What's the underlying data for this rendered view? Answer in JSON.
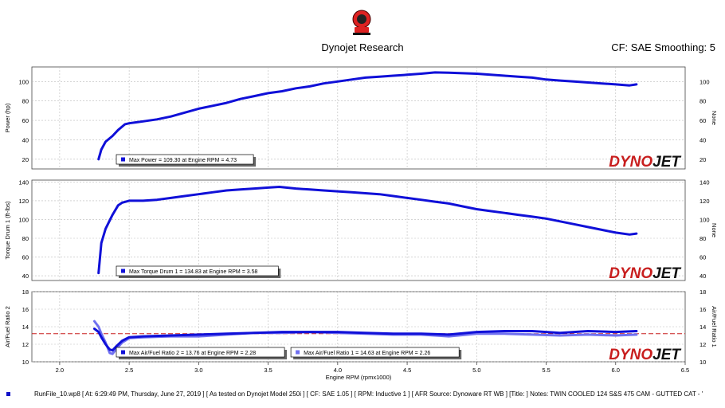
{
  "header": {
    "title": "Dynojet Research",
    "right_text": "CF: SAE Smoothing: 5"
  },
  "watermark": {
    "part1": "DYNO",
    "part2": "JET",
    "color": "#c81e1e"
  },
  "footer": {
    "text": "RunFile_10.wp8 [ At: 6:29:49 PM, Thursday, June 27, 2019 ] [ As tested on Dynojet Model 250i ] [ CF: SAE 1.05 ] [ RPM: Inductive 1 ] [ AFR Source: Dynoware RT WB ] [Title: ]  Notes:  TWIN COOLED 124 S&S 475 CAM - GUTTED CAT - '"
  },
  "chart_data": [
    {
      "type": "line",
      "xlabel": "Engine RPM (rpmx1000)",
      "ylabel": "Power (hp)",
      "ylabel_right": "None",
      "ylim": [
        10,
        115
      ],
      "yticks": [
        20,
        40,
        60,
        80,
        100
      ],
      "xlim": [
        1.8,
        6.5
      ],
      "series": [
        {
          "color": "#1010d8",
          "x": [
            2.28,
            2.3,
            2.33,
            2.38,
            2.42,
            2.47,
            2.5,
            2.55,
            2.6,
            2.7,
            2.8,
            2.9,
            3.0,
            3.1,
            3.2,
            3.3,
            3.4,
            3.5,
            3.6,
            3.7,
            3.8,
            3.9,
            4.0,
            4.1,
            4.2,
            4.3,
            4.4,
            4.5,
            4.6,
            4.7,
            4.8,
            4.9,
            5.0,
            5.1,
            5.2,
            5.3,
            5.4,
            5.5,
            5.6,
            5.7,
            5.8,
            5.9,
            6.0,
            6.1,
            6.15
          ],
          "values": [
            20,
            30,
            38,
            44,
            50,
            56,
            57,
            58,
            59,
            61,
            64,
            68,
            72,
            75,
            78,
            82,
            85,
            88,
            90,
            93,
            95,
            98,
            100,
            102,
            104,
            105,
            106,
            107,
            108,
            109.3,
            109,
            108.5,
            108,
            107,
            106,
            105,
            104,
            102,
            101,
            100,
            99,
            98,
            97,
            96,
            97
          ]
        }
      ],
      "legend": {
        "entries": [
          "Max Power = 109.30 at Engine RPM = 4.73"
        ]
      }
    },
    {
      "type": "line",
      "xlabel": "Engine RPM (rpmx1000)",
      "ylabel": "Torque Drum 1 (ft-lbs)",
      "ylabel_right": "None",
      "ylim": [
        35,
        142
      ],
      "yticks": [
        40,
        60,
        80,
        100,
        120,
        140
      ],
      "xlim": [
        1.8,
        6.5
      ],
      "series": [
        {
          "color": "#1010d8",
          "x": [
            2.28,
            2.3,
            2.33,
            2.38,
            2.42,
            2.45,
            2.5,
            2.55,
            2.6,
            2.7,
            2.8,
            2.9,
            3.0,
            3.1,
            3.2,
            3.3,
            3.4,
            3.5,
            3.58,
            3.7,
            3.8,
            3.9,
            4.0,
            4.1,
            4.2,
            4.3,
            4.4,
            4.5,
            4.6,
            4.7,
            4.8,
            4.9,
            5.0,
            5.1,
            5.2,
            5.3,
            5.4,
            5.5,
            5.6,
            5.7,
            5.8,
            5.9,
            6.0,
            6.1,
            6.15
          ],
          "values": [
            43,
            75,
            90,
            105,
            115,
            118,
            120,
            120,
            120,
            121,
            123,
            125,
            127,
            129,
            131,
            132,
            133,
            134,
            134.8,
            133,
            132,
            131,
            130,
            129,
            128,
            127,
            125,
            123,
            121,
            119,
            117,
            114,
            111,
            109,
            107,
            105,
            103,
            101,
            98,
            95,
            92,
            89,
            86,
            84,
            85
          ]
        }
      ],
      "legend": {
        "entries": [
          "Max Torque Drum 1 = 134.83 at Engine RPM = 3.58"
        ]
      }
    },
    {
      "type": "line",
      "xlabel": "Engine RPM (rpmx1000)",
      "ylabel": "Air/Fuel Ratio 2",
      "ylabel_right": "Air/Fuel Ratio 1",
      "ylim": [
        10,
        18
      ],
      "yticks": [
        10,
        12,
        14,
        16,
        18
      ],
      "xlim": [
        1.8,
        6.5
      ],
      "xticks": [
        2.0,
        2.5,
        3.0,
        3.5,
        4.0,
        4.5,
        5.0,
        5.5,
        6.0,
        6.5
      ],
      "reference_line": 13.2,
      "reference_color": "#c81e1e",
      "series": [
        {
          "name": "Air/Fuel Ratio 2",
          "color": "#1010d8",
          "x": [
            2.25,
            2.28,
            2.3,
            2.33,
            2.36,
            2.38,
            2.41,
            2.45,
            2.5,
            2.6,
            2.8,
            3.0,
            3.2,
            3.4,
            3.6,
            3.8,
            4.0,
            4.2,
            4.4,
            4.6,
            4.8,
            5.0,
            5.2,
            5.4,
            5.6,
            5.8,
            6.0,
            6.15
          ],
          "values": [
            13.76,
            13.4,
            12.8,
            12.0,
            11.4,
            11.3,
            11.8,
            12.4,
            12.8,
            12.9,
            13.0,
            13.1,
            13.2,
            13.3,
            13.4,
            13.4,
            13.4,
            13.3,
            13.2,
            13.2,
            13.1,
            13.4,
            13.5,
            13.5,
            13.3,
            13.5,
            13.4,
            13.5
          ]
        },
        {
          "name": "Air/Fuel Ratio 1",
          "color": "#7070f0",
          "x": [
            2.25,
            2.28,
            2.3,
            2.33,
            2.36,
            2.38,
            2.41,
            2.45,
            2.5,
            2.6,
            2.8,
            3.0,
            3.2,
            3.4,
            3.6,
            3.8,
            4.0,
            4.2,
            4.4,
            4.6,
            4.8,
            5.0,
            5.2,
            5.4,
            5.6,
            5.8,
            6.0,
            6.15
          ],
          "values": [
            14.63,
            14.0,
            13.2,
            12.2,
            11.0,
            10.9,
            11.5,
            12.2,
            12.7,
            12.8,
            12.9,
            12.9,
            13.1,
            13.3,
            13.3,
            13.4,
            13.3,
            13.2,
            13.1,
            13.1,
            12.9,
            13.2,
            13.2,
            13.1,
            13.0,
            13.1,
            13.0,
            13.1
          ]
        }
      ],
      "legend": {
        "entries": [
          "Max Air/Fuel Ratio 2 = 13.76 at Engine RPM = 2.28",
          "Max Air/Fuel Ratio 1 = 14.63 at Engine RPM = 2.26"
        ]
      }
    }
  ]
}
